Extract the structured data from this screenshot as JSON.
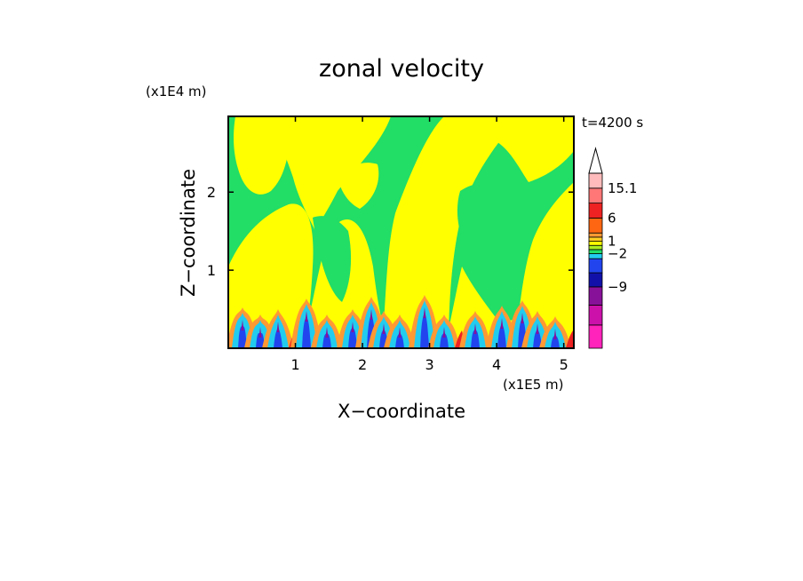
{
  "chart_data": {
    "type": "heatmap",
    "title": "zonal velocity",
    "time_label": "t=4200 s",
    "xlabel": "X−coordinate",
    "ylabel": "Z−coordinate",
    "x_scale_label": "(x1E5 m)",
    "y_scale_label": "(x1E4 m)",
    "xlim": [
      0,
      5.15
    ],
    "ylim": [
      0,
      2.97
    ],
    "x_ticks": [
      1,
      2,
      3,
      4,
      5
    ],
    "x_tick_labels": [
      "1",
      "2",
      "3",
      "4",
      "5"
    ],
    "y_ticks": [
      1,
      2
    ],
    "y_tick_labels": [
      "1",
      "2"
    ],
    "colorbar": {
      "bands_bottom_to_top": [
        "#ff22bb",
        "#cc11aa",
        "#881199",
        "#1111aa",
        "#2244ee",
        "#22ccee",
        "#22dd66",
        "#aaee22",
        "#ffff00",
        "#ffcc22",
        "#ff9933",
        "#ff6611",
        "#ee2222",
        "#ff7777",
        "#ffbbbb"
      ],
      "labels": [
        {
          "text": "15.1",
          "value": 15.1
        },
        {
          "text": "6",
          "value": 6
        },
        {
          "text": "1",
          "value": 1
        },
        {
          "text": "−2",
          "value": -2
        },
        {
          "text": "−9",
          "value": -9
        }
      ],
      "arrow_color": "#ffffff"
    },
    "field_colors": {
      "positive": "#ffff00",
      "near_zero": "#22dd66",
      "strong_positive": "#ff9933",
      "negative": "#22ccee",
      "strong_negative": "#2244ee",
      "extreme_negative": "#881199",
      "extreme_positive": "#ee2222"
    }
  }
}
